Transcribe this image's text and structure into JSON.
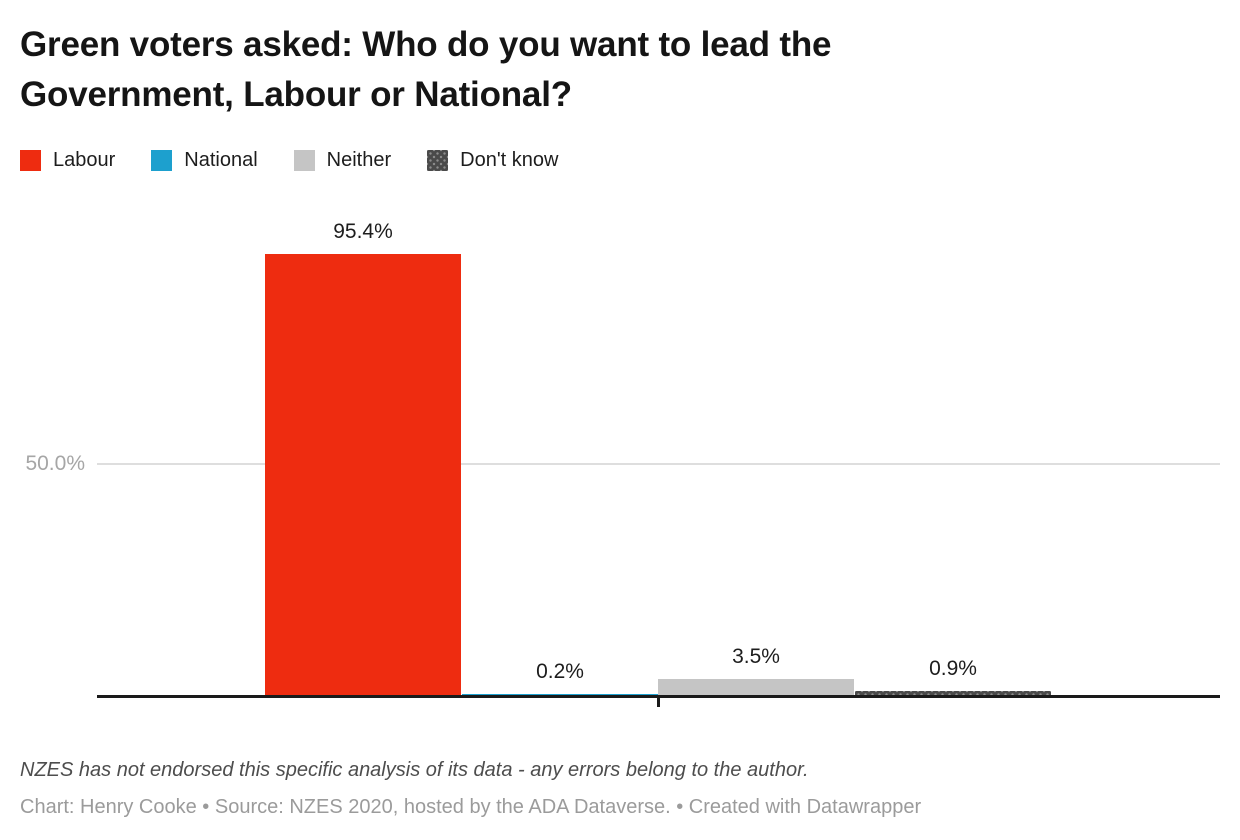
{
  "title": "Green voters asked: Who do you want to lead the Government, Labour or National?",
  "legend": {
    "items": [
      {
        "label": "Labour",
        "color": "#ee2c10",
        "pattern": "solid"
      },
      {
        "label": "National",
        "color": "#1da0ce",
        "pattern": "solid"
      },
      {
        "label": "Neither",
        "color": "#c5c5c5",
        "pattern": "solid"
      },
      {
        "label": "Don't know",
        "color": "#4a4a4a",
        "pattern": "dots"
      }
    ]
  },
  "chart_data": {
    "type": "bar",
    "title": "Green voters asked: Who do you want to lead the Government, Labour or National?",
    "categories": [
      "Labour",
      "National",
      "Neither",
      "Don't know"
    ],
    "values": [
      95.4,
      0.2,
      3.5,
      0.9
    ],
    "value_labels": [
      "95.4%",
      "0.2%",
      "3.5%",
      "0.9%"
    ],
    "colors": [
      "#ee2c10",
      "#1da0ce",
      "#c5c5c5",
      "#4a4a4a"
    ],
    "xlabel": "",
    "ylabel": "",
    "ylim": [
      0,
      100
    ],
    "gridlines": [
      {
        "value": 50,
        "label": "50.0%"
      }
    ],
    "grid": "single horizontal line at 50%, baseline axis at 0%",
    "legend_position": "top-left"
  },
  "axis": {
    "gridline_label": "50.0%"
  },
  "footer": {
    "note": "NZES has not endorsed this specific analysis of its data - any errors belong to the author.",
    "byline": "Chart: Henry Cooke • Source: NZES 2020, hosted by the ADA Dataverse. • Created with Datawrapper"
  },
  "colors": {
    "labour_red": "#ee2c10",
    "national_blue": "#1da0ce",
    "neither_gray": "#c5c5c5",
    "dont_know_dark": "#4a4a4a",
    "axis_black": "#1a1a1a",
    "gridline_gray": "#dedede",
    "muted_label_gray": "#a6a6a6"
  }
}
